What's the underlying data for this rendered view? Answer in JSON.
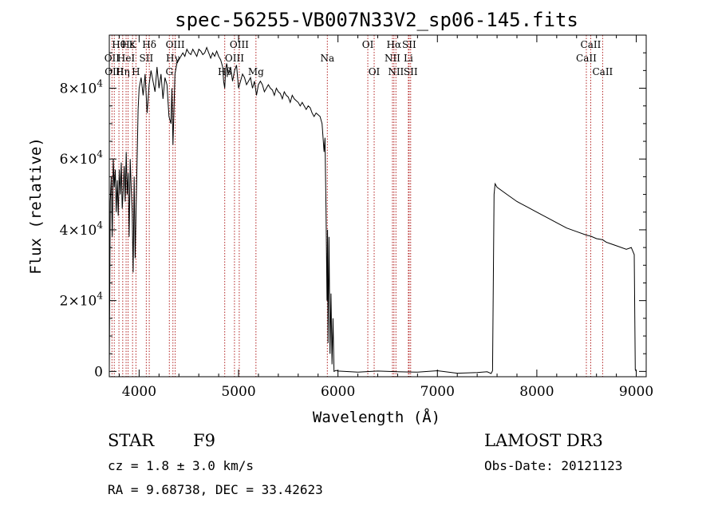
{
  "chart_data": {
    "type": "line",
    "title": "spec-56255-VB007N33V2_sp06-145.fits",
    "xlabel": "Wavelength (Å)",
    "ylabel": "Flux (relative)",
    "xlim": [
      3700,
      9100
    ],
    "ylim": [
      -1500,
      95000
    ],
    "x_ticks": [
      4000,
      5000,
      6000,
      7000,
      8000,
      9000
    ],
    "x_tick_labels": [
      "4000",
      "5000",
      "6000",
      "7000",
      "8000",
      "9000"
    ],
    "y_ticks": [
      0,
      20000,
      40000,
      60000,
      80000
    ],
    "y_tick_labels": [
      {
        "mant": "0",
        "exp": ""
      },
      {
        "mant": "2×10",
        "exp": "4"
      },
      {
        "mant": "4×10",
        "exp": "4"
      },
      {
        "mant": "6×10",
        "exp": "4"
      },
      {
        "mant": "8×10",
        "exp": "4"
      }
    ],
    "series": [
      {
        "name": "flux",
        "x": [
          3700,
          3710,
          3720,
          3730,
          3740,
          3750,
          3760,
          3770,
          3780,
          3790,
          3800,
          3810,
          3820,
          3830,
          3840,
          3850,
          3860,
          3870,
          3880,
          3890,
          3900,
          3910,
          3920,
          3930,
          3940,
          3950,
          3960,
          3970,
          3980,
          3990,
          4000,
          4020,
          4040,
          4060,
          4080,
          4100,
          4120,
          4140,
          4160,
          4180,
          4200,
          4220,
          4240,
          4260,
          4280,
          4300,
          4320,
          4330,
          4340,
          4360,
          4380,
          4400,
          4420,
          4440,
          4460,
          4480,
          4500,
          4520,
          4540,
          4560,
          4580,
          4600,
          4620,
          4640,
          4660,
          4680,
          4700,
          4720,
          4740,
          4760,
          4780,
          4800,
          4820,
          4840,
          4850,
          4861,
          4870,
          4880,
          4900,
          4920,
          4940,
          4960,
          4980,
          5000,
          5020,
          5040,
          5060,
          5080,
          5100,
          5120,
          5140,
          5160,
          5180,
          5200,
          5220,
          5240,
          5260,
          5280,
          5300,
          5320,
          5340,
          5360,
          5380,
          5400,
          5420,
          5440,
          5460,
          5480,
          5500,
          5520,
          5540,
          5560,
          5580,
          5600,
          5620,
          5640,
          5660,
          5680,
          5700,
          5720,
          5740,
          5760,
          5780,
          5800,
          5820,
          5840,
          5860,
          5870,
          5880,
          5890,
          5895,
          5900,
          5910,
          5920,
          5930,
          5940,
          5950,
          5960,
          5980,
          6000,
          6200,
          6400,
          6600,
          6800,
          7000,
          7200,
          7400,
          7500,
          7540,
          7555,
          7570,
          7580,
          7600,
          7700,
          7800,
          7900,
          8000,
          8100,
          8200,
          8300,
          8400,
          8500,
          8542,
          8600,
          8662,
          8700,
          8800,
          8900,
          8950,
          8980,
          8990,
          9000
        ],
        "y": [
          0,
          48000,
          55000,
          38000,
          60000,
          52000,
          57000,
          45000,
          54000,
          44000,
          57000,
          50000,
          59000,
          46000,
          51000,
          58000,
          48000,
          62000,
          50000,
          56000,
          38000,
          60000,
          52000,
          45000,
          28000,
          55000,
          32000,
          47000,
          60000,
          74000,
          80000,
          83000,
          78000,
          84000,
          73000,
          81000,
          85000,
          82000,
          79000,
          86000,
          80000,
          84000,
          77000,
          83000,
          81000,
          72000,
          70000,
          80000,
          64000,
          84000,
          87000,
          88000,
          89000,
          90000,
          89000,
          91000,
          90000,
          89500,
          91000,
          90000,
          89000,
          91000,
          90500,
          89500,
          90000,
          91500,
          90000,
          88500,
          90000,
          89000,
          90500,
          89000,
          88000,
          86000,
          82000,
          80000,
          85000,
          87000,
          84000,
          86000,
          82000,
          85000,
          86500,
          80000,
          82000,
          84000,
          83000,
          81000,
          82000,
          83000,
          80000,
          82000,
          78000,
          81000,
          82000,
          81000,
          79000,
          80000,
          81000,
          80000,
          79500,
          78000,
          80000,
          79000,
          78500,
          77000,
          79000,
          78000,
          77500,
          76000,
          78000,
          77000,
          76500,
          76000,
          75000,
          76000,
          75000,
          74000,
          75000,
          74500,
          73000,
          72000,
          73000,
          72500,
          72000,
          70000,
          62000,
          66000,
          45000,
          20000,
          40000,
          8000,
          38000,
          5000,
          22000,
          2000,
          15000,
          0,
          300,
          100,
          -200,
          100,
          -100,
          -200,
          200,
          -500,
          -300,
          -100,
          -600,
          200,
          50000,
          53000,
          52000,
          50000,
          48000,
          46500,
          45000,
          43500,
          42000,
          40500,
          39500,
          38500,
          38200,
          37500,
          37200,
          36500,
          35500,
          34500,
          35000,
          33000,
          500,
          0
        ]
      }
    ],
    "lines": [
      {
        "wave": 3727,
        "labels": [
          "OII"
        ],
        "rows": [
          1
        ]
      },
      {
        "wave": 3750,
        "labels": [
          "OIII"
        ],
        "rows": [
          2
        ]
      },
      {
        "wave": 3797,
        "labels": [
          "Hθ"
        ],
        "rows": [
          0
        ]
      },
      {
        "wave": 3835,
        "labels": [
          "Hη"
        ],
        "rows": [
          2
        ]
      },
      {
        "wave": 3869,
        "labels": [
          "HeI"
        ],
        "rows": [
          1
        ]
      },
      {
        "wave": 3889,
        "labels": [
          "Hε"
        ],
        "rows": [
          0
        ]
      },
      {
        "wave": 3934,
        "labels": [
          "K"
        ],
        "rows": [
          0
        ]
      },
      {
        "wave": 3968,
        "labels": [
          "H"
        ],
        "rows": [
          2
        ]
      },
      {
        "wave": 4072,
        "labels": [
          "SII"
        ],
        "rows": [
          1
        ]
      },
      {
        "wave": 4102,
        "labels": [
          "Hδ"
        ],
        "rows": [
          0
        ]
      },
      {
        "wave": 4304,
        "labels": [
          "G"
        ],
        "rows": [
          2
        ]
      },
      {
        "wave": 4340,
        "labels": [
          "Hγ"
        ],
        "rows": [
          1
        ]
      },
      {
        "wave": 4363,
        "labels": [
          "OIII"
        ],
        "rows": [
          0
        ]
      },
      {
        "wave": 4861,
        "labels": [
          "Hβ"
        ],
        "rows": [
          2
        ]
      },
      {
        "wave": 4959,
        "labels": [
          "OIII"
        ],
        "rows": [
          1
        ]
      },
      {
        "wave": 5007,
        "labels": [
          "OIII"
        ],
        "rows": [
          0
        ]
      },
      {
        "wave": 5175,
        "labels": [
          "Mg"
        ],
        "rows": [
          2
        ]
      },
      {
        "wave": 5893,
        "labels": [
          "Na"
        ],
        "rows": [
          1
        ]
      },
      {
        "wave": 6300,
        "labels": [
          "OI"
        ],
        "rows": [
          0
        ]
      },
      {
        "wave": 6364,
        "labels": [
          "OI"
        ],
        "rows": [
          2
        ]
      },
      {
        "wave": 6548,
        "labels": [
          "NII"
        ],
        "rows": [
          1
        ]
      },
      {
        "wave": 6563,
        "labels": [
          "Hα"
        ],
        "rows": [
          0
        ]
      },
      {
        "wave": 6583,
        "labels": [
          "NII"
        ],
        "rows": [
          2
        ]
      },
      {
        "wave": 6708,
        "labels": [
          "Li"
        ],
        "rows": [
          1
        ]
      },
      {
        "wave": 6716,
        "labels": [
          "SII"
        ],
        "rows": [
          0
        ]
      },
      {
        "wave": 6731,
        "labels": [
          "SII"
        ],
        "rows": [
          2
        ]
      },
      {
        "wave": 8498,
        "labels": [
          "CaII"
        ],
        "rows": [
          1
        ]
      },
      {
        "wave": 8542,
        "labels": [
          "CaII"
        ],
        "rows": [
          0
        ]
      },
      {
        "wave": 8662,
        "labels": [
          "CaII"
        ],
        "rows": [
          2
        ]
      }
    ]
  },
  "info": {
    "class": "STAR",
    "subclass": "F9",
    "survey": "LAMOST DR3",
    "cz": "cz = 1.8 ± 3.0 km/s",
    "obs_date": "Obs-Date: 20121123",
    "coords": "RA =   9.68738, DEC =  33.42623"
  },
  "colors": {
    "axis": "#000000",
    "spectrum": "#000000",
    "line_marker": "#b22222"
  }
}
